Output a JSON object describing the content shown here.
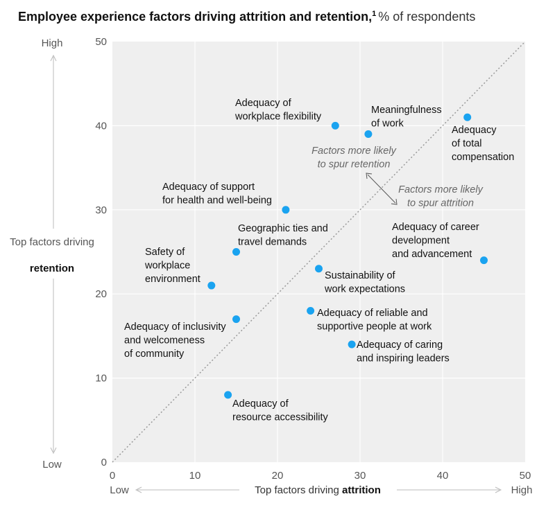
{
  "title": "Employee experience factors driving attrition and retention,",
  "title_footnote": "1",
  "subtitle": "% of respondents",
  "chart_data": {
    "type": "scatter",
    "xlim": [
      0,
      50
    ],
    "ylim": [
      0,
      50
    ],
    "xticks": [
      "0",
      "10",
      "20",
      "30",
      "40",
      "50"
    ],
    "yticks": [
      "0",
      "10",
      "20",
      "30",
      "40",
      "50"
    ],
    "grid": true,
    "reference_line": "diagonal y = x, dotted",
    "point_color": "#1AA3F0",
    "plot_background": "#EFEFEF",
    "xaxis": {
      "low": "Low",
      "high": "High",
      "label_prefix": "Top factors driving",
      "label_bold": "attrition"
    },
    "yaxis": {
      "low": "Low",
      "high": "High",
      "label_prefix": "Top factors driving",
      "label_bold": "retention"
    },
    "annotations": [
      {
        "lines": [
          "Factors more likely",
          "to spur retention"
        ]
      },
      {
        "lines": [
          "Factors more likely",
          "to spur attrition"
        ]
      }
    ],
    "points": [
      {
        "x": 27,
        "y": 40,
        "lines": [
          "Adequacy of",
          "workplace flexibility"
        ]
      },
      {
        "x": 31,
        "y": 39,
        "lines": [
          "Meaningfulness",
          "of work"
        ]
      },
      {
        "x": 43,
        "y": 41,
        "lines": [
          "Adequacy",
          "of total",
          "compensation"
        ]
      },
      {
        "x": 21,
        "y": 30,
        "lines": [
          "Adequacy of support",
          "for health and well-being"
        ]
      },
      {
        "x": 15,
        "y": 25,
        "lines": [
          "Geographic ties and",
          "travel demands"
        ]
      },
      {
        "x": 12,
        "y": 21,
        "lines": [
          "Safety of",
          "workplace",
          "environment"
        ]
      },
      {
        "x": 45,
        "y": 24,
        "lines": [
          "Adequacy of career",
          "development",
          "and advancement"
        ]
      },
      {
        "x": 25,
        "y": 23,
        "lines": [
          "Sustainability of",
          "work expectations"
        ]
      },
      {
        "x": 24,
        "y": 18,
        "lines": [
          "Adequacy of reliable and",
          "supportive people at work"
        ]
      },
      {
        "x": 15,
        "y": 17,
        "lines": [
          "Adequacy of inclusivity",
          "and welcomeness",
          "of community"
        ]
      },
      {
        "x": 29,
        "y": 14,
        "lines": [
          "Adequacy of caring",
          "and inspiring leaders"
        ]
      },
      {
        "x": 14,
        "y": 8,
        "lines": [
          "Adequacy of",
          "resource accessibility"
        ]
      }
    ]
  }
}
